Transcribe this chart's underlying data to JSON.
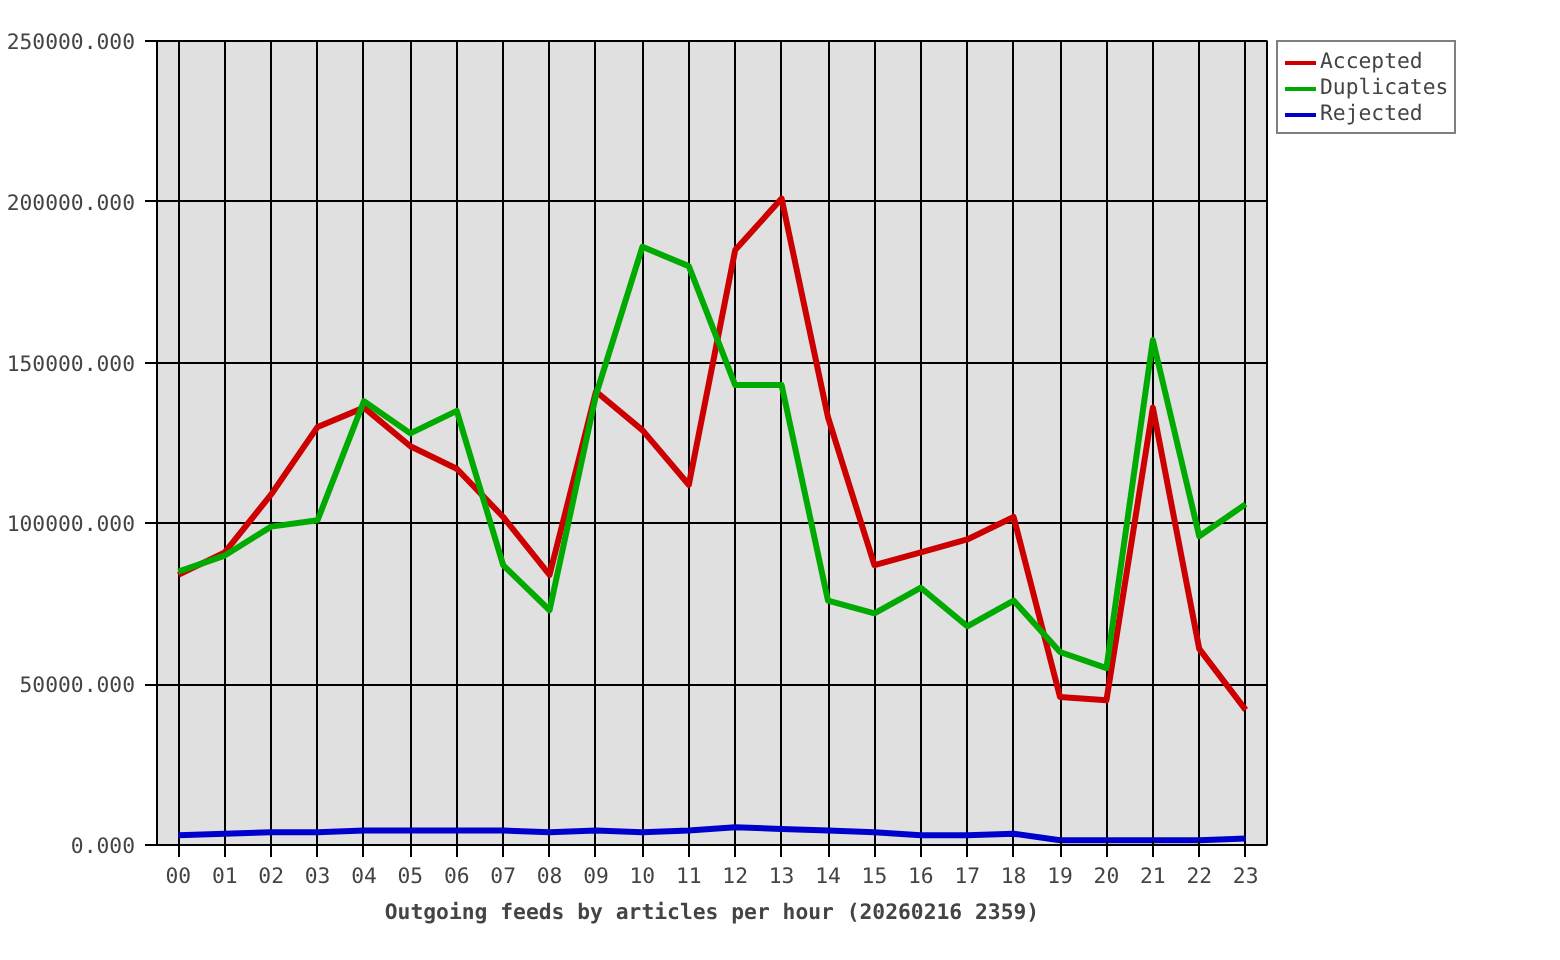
{
  "chart_data": {
    "type": "line",
    "xlabel": "Outgoing feeds by articles per hour (20260216 2359)",
    "categories": [
      "00",
      "01",
      "02",
      "03",
      "04",
      "05",
      "06",
      "07",
      "08",
      "09",
      "10",
      "11",
      "12",
      "13",
      "14",
      "15",
      "16",
      "17",
      "18",
      "19",
      "20",
      "21",
      "22",
      "23"
    ],
    "series": [
      {
        "name": "Accepted",
        "color": "#cc0000",
        "values": [
          84000,
          91000,
          109000,
          130000,
          136000,
          124000,
          117000,
          102000,
          84000,
          141000,
          129000,
          112000,
          185000,
          201000,
          133000,
          87000,
          91000,
          95000,
          102000,
          46000,
          45000,
          136000,
          61000,
          42000
        ]
      },
      {
        "name": "Duplicates",
        "color": "#00aa00",
        "values": [
          85000,
          90000,
          99000,
          101000,
          138000,
          128000,
          135000,
          87000,
          73000,
          140000,
          186000,
          180000,
          143000,
          143000,
          76000,
          72000,
          80000,
          68000,
          76000,
          60000,
          55000,
          157000,
          96000,
          106000
        ]
      },
      {
        "name": "Rejected",
        "color": "#0000cc",
        "values": [
          3000,
          3500,
          4000,
          4000,
          4500,
          4500,
          4500,
          4500,
          4000,
          4500,
          4000,
          4500,
          5500,
          5000,
          4500,
          4000,
          3000,
          3000,
          3500,
          1500,
          1500,
          1500,
          1500,
          2000
        ]
      }
    ],
    "ylim": [
      0,
      250000
    ],
    "yticks": [
      {
        "value": 0,
        "label": "0.000"
      },
      {
        "value": 50000,
        "label": "50000.000"
      },
      {
        "value": 100000,
        "label": "100000.000"
      },
      {
        "value": 150000,
        "label": "150000.000"
      },
      {
        "value": 200000,
        "label": "200000.000"
      },
      {
        "value": 250000,
        "label": "250000.000"
      }
    ],
    "grid": true,
    "legend": "top right",
    "marker": "none",
    "line_style": "solid"
  }
}
